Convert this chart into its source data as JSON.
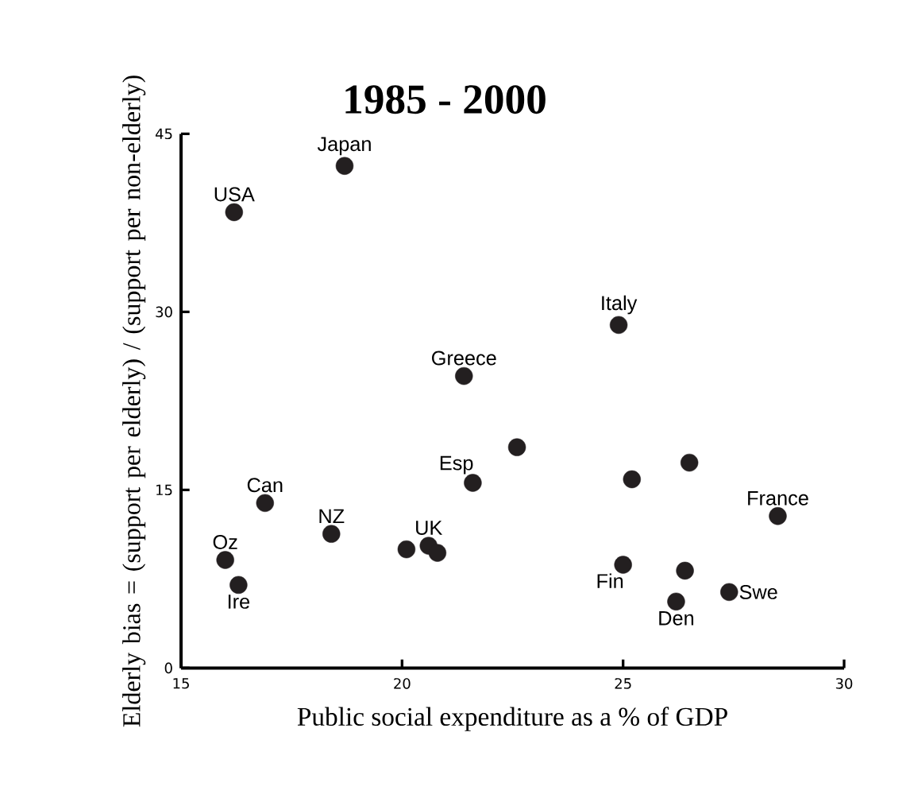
{
  "chart_data": {
    "type": "scatter",
    "title": "1985 - 2000",
    "xlabel": "Public social expenditure as a % of GDP",
    "ylabel": "Elderly bias = (support per elderly) / (support per non-elderly)",
    "x": [
      16.2,
      18.7,
      24.9,
      21.4,
      22.6,
      21.6,
      25.2,
      26.5,
      28.5,
      16.9,
      18.4,
      16.0,
      16.3,
      20.1,
      20.6,
      20.8,
      25.0,
      26.4,
      26.2,
      27.4
    ],
    "values": [
      38.4,
      42.3,
      28.9,
      24.6,
      18.6,
      15.6,
      15.9,
      17.3,
      12.8,
      13.9,
      11.3,
      9.1,
      7.0,
      10.0,
      10.3,
      9.7,
      8.7,
      8.2,
      5.6,
      6.4
    ],
    "color": "#231f20",
    "marker": "circle",
    "xlim": [
      15,
      30
    ],
    "xticks": [
      15,
      20,
      25,
      30
    ],
    "ylim": [
      0,
      45
    ],
    "yticks": [
      0,
      15,
      30,
      45
    ],
    "annotations": [
      {
        "text": "USA",
        "x": 16.2,
        "y": 38.4
      },
      {
        "text": "Japan",
        "x": 18.7,
        "y": 42.3
      },
      {
        "text": "Italy",
        "x": 24.9,
        "y": 28.9
      },
      {
        "text": "Greece",
        "x": 21.4,
        "y": 24.6
      },
      {
        "text": "Esp",
        "x": 21.6,
        "y": 15.6
      },
      {
        "text": "Can",
        "x": 16.9,
        "y": 13.9
      },
      {
        "text": "NZ",
        "x": 18.4,
        "y": 11.3
      },
      {
        "text": "Oz",
        "x": 16.0,
        "y": 9.1
      },
      {
        "text": "Ire",
        "x": 16.3,
        "y": 7.0
      },
      {
        "text": "UK",
        "x": 20.6,
        "y": 10.3
      },
      {
        "text": "Fin",
        "x": 25.0,
        "y": 8.7
      },
      {
        "text": "Den",
        "x": 26.2,
        "y": 5.6
      },
      {
        "text": "Swe",
        "x": 27.4,
        "y": 6.4
      },
      {
        "text": "France",
        "x": 28.5,
        "y": 12.8
      }
    ]
  }
}
